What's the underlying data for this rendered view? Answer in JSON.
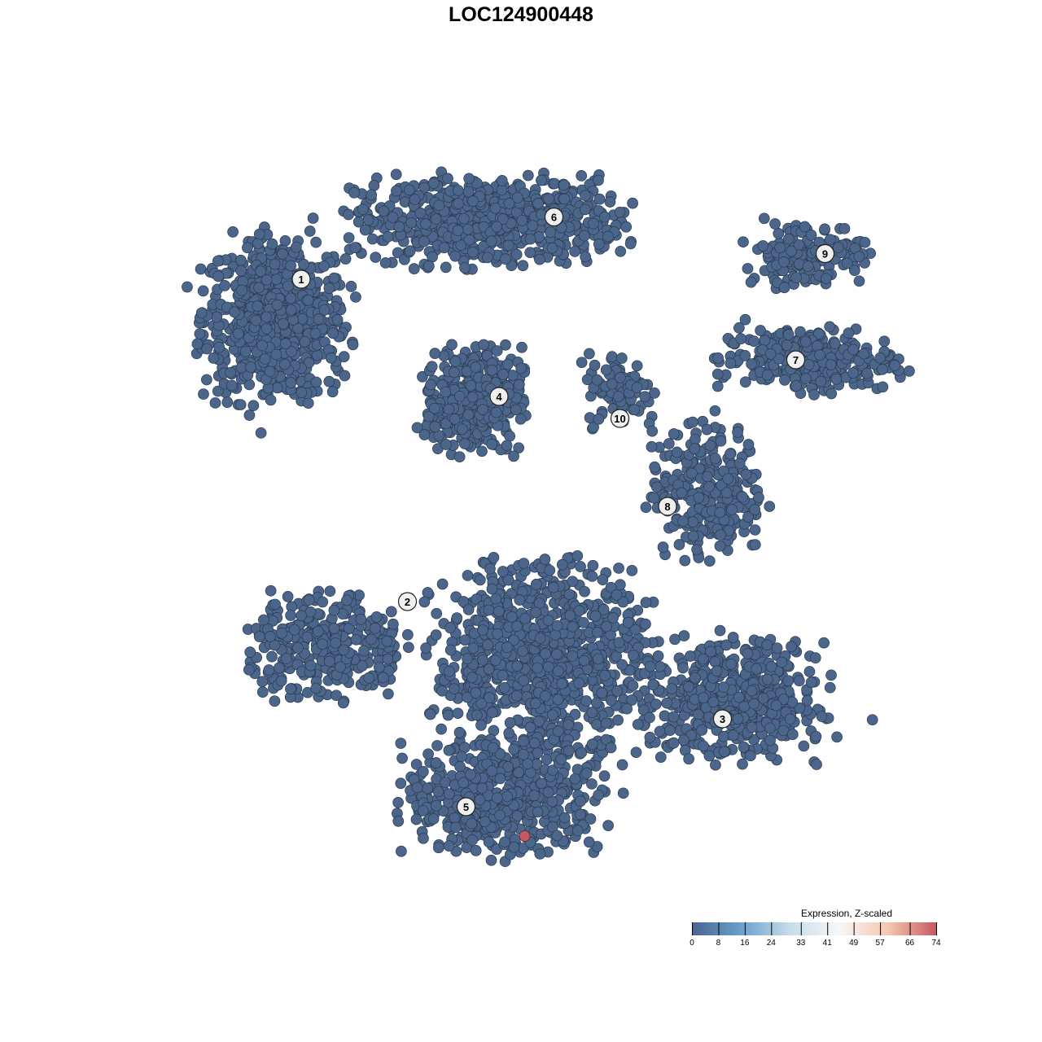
{
  "chart_data": {
    "type": "scatter",
    "title": "LOC124900448",
    "xlabel": "",
    "ylabel": "",
    "grid": false,
    "point_color": "#4b668a",
    "point_stroke": "#2a3a50",
    "groups": [
      {
        "cluster": "1",
        "center": [
          -6.7,
          5.5
        ],
        "spread": [
          1.8,
          2.0
        ],
        "n": 700
      },
      {
        "cluster": "6",
        "center": [
          -0.9,
          8.2
        ],
        "spread": [
          3.3,
          1.1
        ],
        "n": 650
      },
      {
        "cluster": "4",
        "center": [
          -1.3,
          3.3
        ],
        "spread": [
          1.2,
          1.3
        ],
        "n": 380
      },
      {
        "cluster": "10",
        "center": [
          2.7,
          3.6
        ],
        "spread": [
          0.8,
          0.9
        ],
        "n": 90
      },
      {
        "cluster": "9",
        "center": [
          7.8,
          7.3
        ],
        "spread": [
          1.5,
          0.8
        ],
        "n": 160
      },
      {
        "cluster": "7",
        "center": [
          7.8,
          4.4
        ],
        "spread": [
          2.2,
          0.8
        ],
        "n": 260
      },
      {
        "cluster": "8",
        "center": [
          5.1,
          0.8
        ],
        "spread": [
          1.4,
          1.6
        ],
        "n": 280
      },
      {
        "cluster": "2",
        "center": [
          -5.3,
          -3.4
        ],
        "spread": [
          1.9,
          1.3
        ],
        "n": 330
      },
      {
        "cluster": "3",
        "center": [
          5.8,
          -4.9
        ],
        "spread": [
          2.3,
          1.5
        ],
        "n": 500
      },
      {
        "cluster": "5",
        "center": [
          0.5,
          -3.8
        ],
        "spread": [
          2.6,
          2.4
        ],
        "n": 900
      },
      {
        "cluster": "5",
        "center": [
          -0.5,
          -7.6
        ],
        "spread": [
          2.4,
          1.3
        ],
        "n": 520
      }
    ],
    "cluster_labels": [
      {
        "label": "1",
        "pos": [
          -6.0,
          6.6
        ]
      },
      {
        "label": "6",
        "pos": [
          0.9,
          8.3
        ]
      },
      {
        "label": "9",
        "pos": [
          8.3,
          7.3
        ]
      },
      {
        "label": "4",
        "pos": [
          -0.6,
          3.4
        ]
      },
      {
        "label": "7",
        "pos": [
          7.5,
          4.4
        ]
      },
      {
        "label": "10",
        "pos": [
          2.7,
          2.8
        ]
      },
      {
        "label": "8",
        "pos": [
          4.0,
          0.4
        ]
      },
      {
        "label": "2",
        "pos": [
          -3.1,
          -2.2
        ]
      },
      {
        "label": "3",
        "pos": [
          5.5,
          -5.4
        ]
      },
      {
        "label": "5",
        "pos": [
          -1.5,
          -7.8
        ]
      }
    ],
    "highlighted_points": [
      {
        "pos": [
          0.1,
          -8.6
        ],
        "value": 74
      }
    ],
    "colorbar": {
      "title": "Expression, Z-scaled",
      "ticks": [
        "0",
        "8",
        "16",
        "24",
        "33",
        "41",
        "49",
        "57",
        "66",
        "74"
      ],
      "range": [
        0,
        74
      ],
      "colors": [
        "#4a6590",
        "#6aa0cc",
        "#c6dcea",
        "#f7f7f7",
        "#f6c7b0",
        "#c65860"
      ]
    }
  }
}
